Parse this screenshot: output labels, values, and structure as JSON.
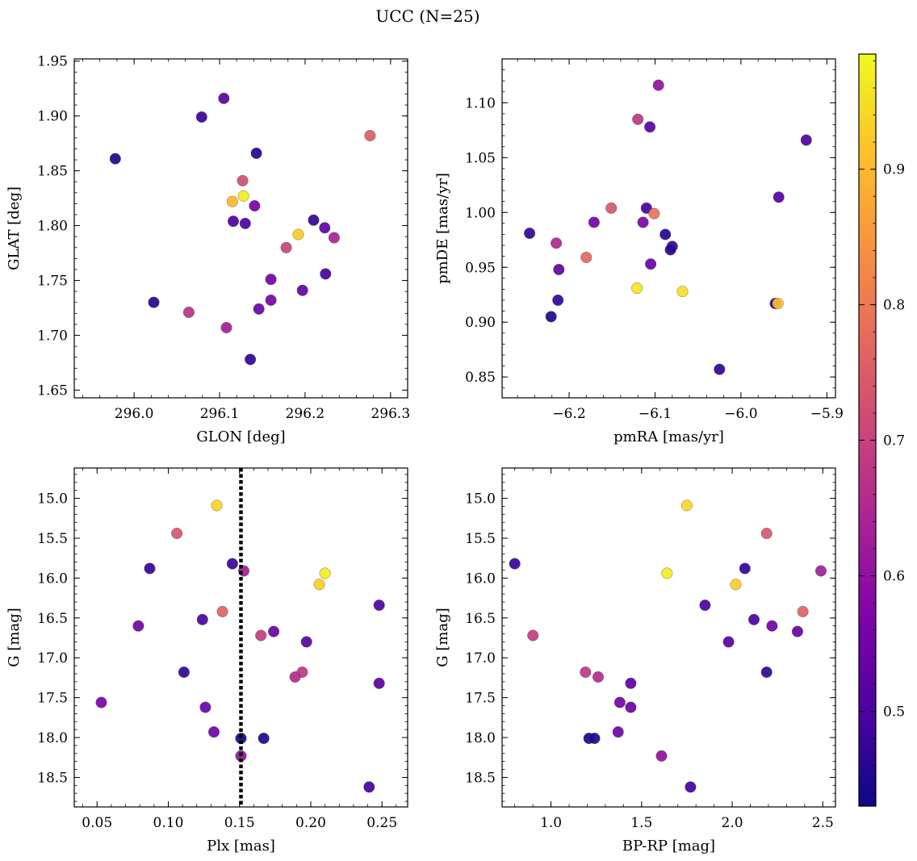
{
  "chart_data": {
    "title": "UCC (N=25)",
    "type": "scatter",
    "colorbar": {
      "range": [
        0.43,
        0.985
      ],
      "ticks": [
        0.5,
        0.6,
        0.7,
        0.8,
        0.9
      ],
      "ticklabels": [
        "0.5",
        "0.6",
        "0.7",
        "0.8",
        "0.9"
      ],
      "colormap": "plasma"
    },
    "panels": [
      {
        "id": "glon-glat",
        "xlabel": "GLON [deg]",
        "ylabel": "GLAT [deg]",
        "xlim": [
          295.93,
          296.32
        ],
        "ylim": [
          1.643,
          1.952
        ],
        "yinvert": false,
        "xticks": [
          296.0,
          296.1,
          296.2,
          296.3
        ],
        "xticklabels": [
          "296.0",
          "296.1",
          "296.2",
          "296.3"
        ],
        "yticks": [
          1.65,
          1.7,
          1.75,
          1.8,
          1.85,
          1.9,
          1.95
        ],
        "yticklabels": [
          "1.65",
          "1.70",
          "1.75",
          "1.80",
          "1.85",
          "1.90",
          "1.95"
        ],
        "points": [
          {
            "x": 296.105,
            "y": 1.916,
            "c": 0.52
          },
          {
            "x": 296.079,
            "y": 1.899,
            "c": 0.48
          },
          {
            "x": 295.978,
            "y": 1.861,
            "c": 0.45
          },
          {
            "x": 296.143,
            "y": 1.866,
            "c": 0.46
          },
          {
            "x": 296.276,
            "y": 1.882,
            "c": 0.75
          },
          {
            "x": 296.127,
            "y": 1.841,
            "c": 0.72
          },
          {
            "x": 296.128,
            "y": 1.827,
            "c": 0.97
          },
          {
            "x": 296.115,
            "y": 1.822,
            "c": 0.9
          },
          {
            "x": 296.141,
            "y": 1.818,
            "c": 0.56
          },
          {
            "x": 296.116,
            "y": 1.804,
            "c": 0.5
          },
          {
            "x": 296.13,
            "y": 1.802,
            "c": 0.5
          },
          {
            "x": 296.21,
            "y": 1.805,
            "c": 0.47
          },
          {
            "x": 296.223,
            "y": 1.798,
            "c": 0.53
          },
          {
            "x": 296.234,
            "y": 1.789,
            "c": 0.64
          },
          {
            "x": 296.192,
            "y": 1.792,
            "c": 0.93
          },
          {
            "x": 296.178,
            "y": 1.78,
            "c": 0.7
          },
          {
            "x": 296.16,
            "y": 1.751,
            "c": 0.55
          },
          {
            "x": 296.224,
            "y": 1.756,
            "c": 0.49
          },
          {
            "x": 296.197,
            "y": 1.741,
            "c": 0.53
          },
          {
            "x": 296.16,
            "y": 1.732,
            "c": 0.56
          },
          {
            "x": 296.146,
            "y": 1.724,
            "c": 0.54
          },
          {
            "x": 296.023,
            "y": 1.73,
            "c": 0.46
          },
          {
            "x": 296.064,
            "y": 1.721,
            "c": 0.67
          },
          {
            "x": 296.108,
            "y": 1.707,
            "c": 0.63
          },
          {
            "x": 296.136,
            "y": 1.678,
            "c": 0.47
          }
        ]
      },
      {
        "id": "pmra-pmde",
        "xlabel": "pmRA [mas/yr]",
        "ylabel": "pmDE [mas/yr]",
        "xlim": [
          -6.278,
          -5.89
        ],
        "ylim": [
          0.831,
          1.14
        ],
        "yinvert": false,
        "xticks": [
          -6.2,
          -6.1,
          -6.0,
          -5.9
        ],
        "xticklabels": [
          "−6.2",
          "−6.1",
          "−6.0",
          "−5.9"
        ],
        "yticks": [
          0.85,
          0.9,
          0.95,
          1.0,
          1.05,
          1.1
        ],
        "yticklabels": [
          "0.85",
          "0.90",
          "0.95",
          "1.00",
          "1.05",
          "1.10"
        ],
        "points": [
          {
            "x": -6.096,
            "y": 1.116,
            "c": 0.6
          },
          {
            "x": -6.12,
            "y": 1.085,
            "c": 0.68
          },
          {
            "x": -6.106,
            "y": 1.078,
            "c": 0.52
          },
          {
            "x": -5.924,
            "y": 1.066,
            "c": 0.5
          },
          {
            "x": -5.956,
            "y": 1.014,
            "c": 0.51
          },
          {
            "x": -6.151,
            "y": 1.004,
            "c": 0.74
          },
          {
            "x": -6.11,
            "y": 1.004,
            "c": 0.49
          },
          {
            "x": -6.101,
            "y": 0.999,
            "c": 0.79
          },
          {
            "x": -6.246,
            "y": 0.981,
            "c": 0.47
          },
          {
            "x": -6.171,
            "y": 0.991,
            "c": 0.55
          },
          {
            "x": -6.114,
            "y": 0.991,
            "c": 0.57
          },
          {
            "x": -6.088,
            "y": 0.98,
            "c": 0.46
          },
          {
            "x": -6.215,
            "y": 0.972,
            "c": 0.65
          },
          {
            "x": -6.08,
            "y": 0.969,
            "c": 0.47
          },
          {
            "x": -6.082,
            "y": 0.966,
            "c": 0.46
          },
          {
            "x": -6.18,
            "y": 0.959,
            "c": 0.77
          },
          {
            "x": -6.105,
            "y": 0.953,
            "c": 0.54
          },
          {
            "x": -6.212,
            "y": 0.948,
            "c": 0.53
          },
          {
            "x": -6.121,
            "y": 0.931,
            "c": 0.96
          },
          {
            "x": -6.068,
            "y": 0.928,
            "c": 0.95
          },
          {
            "x": -6.213,
            "y": 0.92,
            "c": 0.47
          },
          {
            "x": -5.96,
            "y": 0.917,
            "c": 0.46
          },
          {
            "x": -5.957,
            "y": 0.917,
            "c": 0.91
          },
          {
            "x": -6.221,
            "y": 0.905,
            "c": 0.45
          },
          {
            "x": -6.025,
            "y": 0.857,
            "c": 0.47
          }
        ]
      },
      {
        "id": "plx-g",
        "xlabel": "Plx [mas]",
        "ylabel": "G [mag]",
        "xlim": [
          0.034,
          0.268
        ],
        "ylim": [
          18.87,
          14.62
        ],
        "yinvert": true,
        "xticks": [
          0.05,
          0.1,
          0.15,
          0.2,
          0.25
        ],
        "xticklabels": [
          "0.05",
          "0.10",
          "0.15",
          "0.20",
          "0.25"
        ],
        "yticks": [
          15.0,
          15.5,
          16.0,
          16.5,
          17.0,
          17.5,
          18.0,
          18.5
        ],
        "yticklabels": [
          "15.0",
          "15.5",
          "16.0",
          "16.5",
          "17.0",
          "17.5",
          "18.0",
          "18.5"
        ],
        "vline": {
          "x": 0.151
        },
        "points": [
          {
            "x": 0.134,
            "y": 15.09,
            "c": 0.94
          },
          {
            "x": 0.106,
            "y": 15.44,
            "c": 0.74
          },
          {
            "x": 0.087,
            "y": 15.88,
            "c": 0.47
          },
          {
            "x": 0.145,
            "y": 15.82,
            "c": 0.48
          },
          {
            "x": 0.153,
            "y": 15.91,
            "c": 0.63
          },
          {
            "x": 0.21,
            "y": 15.94,
            "c": 0.97
          },
          {
            "x": 0.206,
            "y": 16.08,
            "c": 0.93
          },
          {
            "x": 0.248,
            "y": 16.34,
            "c": 0.5
          },
          {
            "x": 0.138,
            "y": 16.42,
            "c": 0.76
          },
          {
            "x": 0.124,
            "y": 16.52,
            "c": 0.5
          },
          {
            "x": 0.079,
            "y": 16.6,
            "c": 0.55
          },
          {
            "x": 0.174,
            "y": 16.67,
            "c": 0.54
          },
          {
            "x": 0.165,
            "y": 16.72,
            "c": 0.69
          },
          {
            "x": 0.197,
            "y": 16.8,
            "c": 0.52
          },
          {
            "x": 0.111,
            "y": 17.18,
            "c": 0.47
          },
          {
            "x": 0.194,
            "y": 17.18,
            "c": 0.68
          },
          {
            "x": 0.189,
            "y": 17.24,
            "c": 0.66
          },
          {
            "x": 0.248,
            "y": 17.32,
            "c": 0.52
          },
          {
            "x": 0.053,
            "y": 17.56,
            "c": 0.56
          },
          {
            "x": 0.126,
            "y": 17.62,
            "c": 0.54
          },
          {
            "x": 0.132,
            "y": 17.93,
            "c": 0.55
          },
          {
            "x": 0.151,
            "y": 18.01,
            "c": 0.44
          },
          {
            "x": 0.167,
            "y": 18.01,
            "c": 0.45
          },
          {
            "x": 0.151,
            "y": 18.23,
            "c": 0.6
          },
          {
            "x": 0.241,
            "y": 18.62,
            "c": 0.49
          }
        ]
      },
      {
        "id": "bprp-g",
        "xlabel": "BP-RP [mag]",
        "ylabel": "G [mag]",
        "xlim": [
          0.73,
          2.57
        ],
        "ylim": [
          18.87,
          14.62
        ],
        "yinvert": true,
        "xticks": [
          1.0,
          1.5,
          2.0,
          2.5
        ],
        "xticklabels": [
          "1.0",
          "1.5",
          "2.0",
          "2.5"
        ],
        "yticks": [
          15.0,
          15.5,
          16.0,
          16.5,
          17.0,
          17.5,
          18.0,
          18.5
        ],
        "yticklabels": [
          "15.0",
          "15.5",
          "16.0",
          "16.5",
          "17.0",
          "17.5",
          "18.0",
          "18.5"
        ],
        "points": [
          {
            "x": 1.75,
            "y": 15.09,
            "c": 0.94
          },
          {
            "x": 2.19,
            "y": 15.44,
            "c": 0.74
          },
          {
            "x": 0.8,
            "y": 15.82,
            "c": 0.48
          },
          {
            "x": 2.07,
            "y": 15.88,
            "c": 0.47
          },
          {
            "x": 2.49,
            "y": 15.91,
            "c": 0.63
          },
          {
            "x": 1.64,
            "y": 15.94,
            "c": 0.97
          },
          {
            "x": 2.02,
            "y": 16.08,
            "c": 0.93
          },
          {
            "x": 1.85,
            "y": 16.34,
            "c": 0.5
          },
          {
            "x": 2.39,
            "y": 16.42,
            "c": 0.76
          },
          {
            "x": 2.12,
            "y": 16.52,
            "c": 0.5
          },
          {
            "x": 2.22,
            "y": 16.6,
            "c": 0.55
          },
          {
            "x": 2.36,
            "y": 16.67,
            "c": 0.54
          },
          {
            "x": 0.9,
            "y": 16.72,
            "c": 0.69
          },
          {
            "x": 1.98,
            "y": 16.8,
            "c": 0.52
          },
          {
            "x": 1.19,
            "y": 17.18,
            "c": 0.68
          },
          {
            "x": 2.19,
            "y": 17.18,
            "c": 0.47
          },
          {
            "x": 1.26,
            "y": 17.24,
            "c": 0.66
          },
          {
            "x": 1.44,
            "y": 17.32,
            "c": 0.52
          },
          {
            "x": 1.38,
            "y": 17.56,
            "c": 0.56
          },
          {
            "x": 1.44,
            "y": 17.62,
            "c": 0.54
          },
          {
            "x": 1.37,
            "y": 17.93,
            "c": 0.55
          },
          {
            "x": 1.21,
            "y": 18.01,
            "c": 0.44
          },
          {
            "x": 1.24,
            "y": 18.01,
            "c": 0.45
          },
          {
            "x": 1.61,
            "y": 18.23,
            "c": 0.6
          },
          {
            "x": 1.77,
            "y": 18.62,
            "c": 0.49
          }
        ]
      }
    ]
  }
}
